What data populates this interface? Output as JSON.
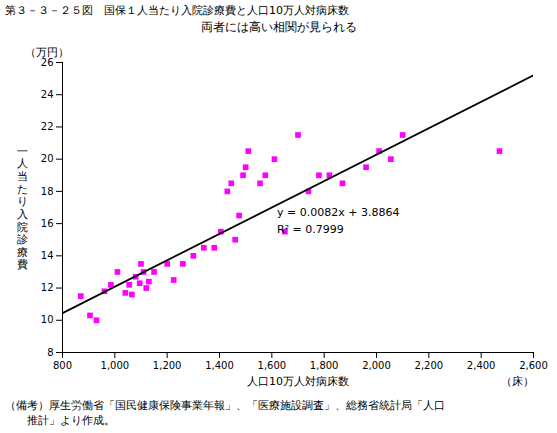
{
  "chart_data": {
    "type": "scatter",
    "title": "第３－３－２５図　国保１人当たり入院診療費と人口10万人対病床数",
    "subtitle": "両者には高い相関が見られる",
    "xlabel": "人口10万人対病床数",
    "x_unit": "（床）",
    "ylabel": "一人当たり入院診療費",
    "y_unit": "（万円）",
    "caption": [
      "（備考）厚生労働省「国民健康保険事業年報」、「医療施設調査」、総務省統計局「人口",
      "　　推計」より作成。"
    ],
    "grid": false,
    "series": [
      {
        "type": "scatter",
        "color": "#FF00FF",
        "marker": "square",
        "x": [
          870,
          905,
          930,
          960,
          985,
          1010,
          1040,
          1055,
          1065,
          1080,
          1095,
          1100,
          1110,
          1120,
          1130,
          1150,
          1200,
          1225,
          1260,
          1300,
          1340,
          1380,
          1405,
          1430,
          1445,
          1460,
          1475,
          1490,
          1500,
          1510,
          1555,
          1575,
          1610,
          1650,
          1700,
          1740,
          1780,
          1820,
          1870,
          1960,
          2010,
          2055,
          2100,
          2470
        ],
        "values": [
          11.5,
          10.3,
          10.0,
          11.8,
          12.2,
          13.0,
          11.7,
          12.2,
          11.6,
          12.7,
          12.3,
          13.5,
          13.0,
          12.0,
          12.4,
          13.0,
          13.5,
          12.5,
          13.5,
          14.0,
          14.5,
          14.5,
          15.5,
          18.0,
          18.5,
          15.0,
          16.5,
          19.0,
          19.5,
          20.5,
          18.5,
          19.0,
          20.0,
          15.5,
          21.5,
          18.0,
          19.0,
          19.0,
          18.5,
          19.5,
          20.5,
          20.0,
          21.5,
          20.5
        ]
      },
      {
        "type": "line",
        "color": "#000000",
        "line_style": "solid",
        "x": [
          800,
          2600
        ],
        "values": [
          10.4464,
          25.2064
        ]
      }
    ],
    "annotations": [
      {
        "text": "y = 0.0082x + 3.8864",
        "x": 1620,
        "y": 16.5
      },
      {
        "text": "R² = 0.7999",
        "x": 1620,
        "y": 15.4
      }
    ],
    "xlim": [
      800,
      2600
    ],
    "xticks": [
      800,
      {
        "value": 1000,
        "label": "1,000"
      },
      {
        "value": 1200,
        "label": "1,200"
      },
      {
        "value": 1400,
        "label": "1,400"
      },
      {
        "value": 1600,
        "label": "1,600"
      },
      {
        "value": 1800,
        "label": "1,800"
      },
      {
        "value": 2000,
        "label": "2,000"
      },
      {
        "value": 2200,
        "label": "2,200"
      },
      {
        "value": 2400,
        "label": "2,400"
      },
      {
        "value": 2600,
        "label": "2,600"
      }
    ],
    "ylim": [
      8,
      26
    ],
    "yticks": [
      8,
      10,
      12,
      14,
      16,
      18,
      20,
      22,
      24,
      26
    ]
  }
}
